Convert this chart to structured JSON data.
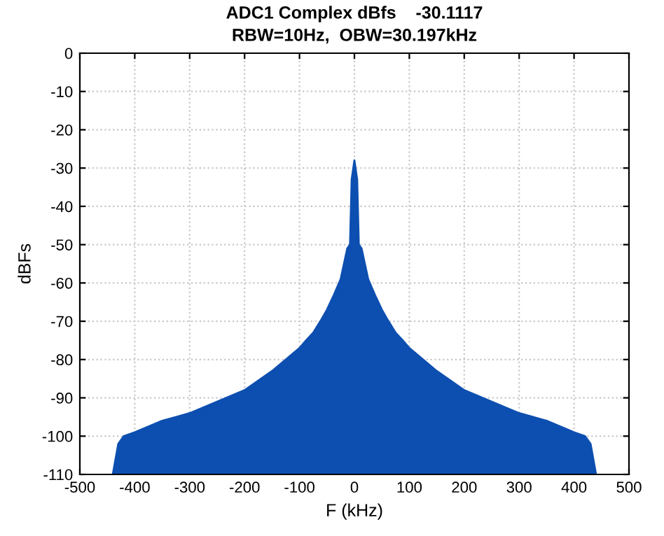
{
  "chart_data": {
    "type": "area",
    "title": "ADC1 Complex dBfs    -30.1117",
    "subtitle": "RBW=10Hz,  OBW=30.197kHz",
    "xlabel": "F (kHz)",
    "ylabel": "dBFs",
    "x": [
      -440,
      -435,
      -430,
      -420,
      -400,
      -350,
      -300,
      -250,
      -200,
      -150,
      -100,
      -88,
      -75,
      -62,
      -50,
      -37,
      -25,
      -13,
      -8,
      -5,
      0,
      5,
      8,
      13,
      25,
      37,
      50,
      62,
      75,
      88,
      100,
      150,
      200,
      250,
      300,
      350,
      400,
      420,
      430,
      435,
      440
    ],
    "series": [
      {
        "color": "#0d4fb0",
        "values": [
          -110,
          -106,
          -102,
          -100,
          -99,
          -96,
          -94,
          -91,
          -88,
          -83,
          -77,
          -75,
          -73,
          -70,
          -67,
          -63,
          -59,
          -51,
          -50,
          -33,
          -28,
          -33,
          -50,
          -51,
          -59,
          -63,
          -67,
          -70,
          -73,
          -75,
          -77,
          -83,
          -88,
          -91,
          -94,
          -96,
          -99,
          -100,
          -102,
          -106,
          -110
        ]
      }
    ],
    "xlim": [
      -500,
      500
    ],
    "ylim": [
      -110,
      0
    ],
    "xticks": [
      -500,
      -400,
      -300,
      -200,
      -100,
      0,
      100,
      200,
      300,
      400,
      500
    ],
    "yticks": [
      -110,
      -100,
      -90,
      -80,
      -70,
      -60,
      -50,
      -40,
      -30,
      -20,
      -10,
      0
    ],
    "grid": true
  }
}
